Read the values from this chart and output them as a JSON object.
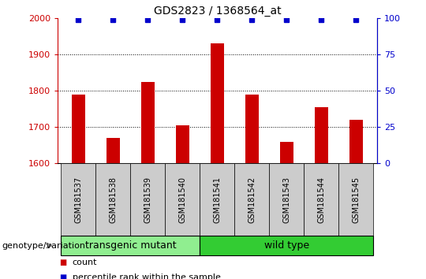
{
  "title": "GDS2823 / 1368564_at",
  "samples": [
    "GSM181537",
    "GSM181538",
    "GSM181539",
    "GSM181540",
    "GSM181541",
    "GSM181542",
    "GSM181543",
    "GSM181544",
    "GSM181545"
  ],
  "counts": [
    1790,
    1670,
    1825,
    1705,
    1930,
    1790,
    1658,
    1755,
    1720
  ],
  "percentile_ranks": [
    99,
    99,
    99,
    99,
    99,
    99,
    99,
    99,
    99
  ],
  "ylim_left": [
    1600,
    2000
  ],
  "yticks_left": [
    1600,
    1700,
    1800,
    1900,
    2000
  ],
  "ylim_right": [
    0,
    100
  ],
  "yticks_right": [
    0,
    25,
    50,
    75,
    100
  ],
  "bar_color": "#cc0000",
  "dot_color": "#0000cc",
  "left_tick_color": "#cc0000",
  "right_tick_color": "#0000cc",
  "groups": [
    {
      "label": "transgenic mutant",
      "start": 0,
      "end": 4,
      "color": "#90ee90"
    },
    {
      "label": "wild type",
      "start": 4,
      "end": 9,
      "color": "#33cc33"
    }
  ],
  "group_label": "genotype/variation",
  "legend_count_label": "count",
  "legend_percentile_label": "percentile rank within the sample",
  "grid_color": "#000000",
  "bg_color": "#ffffff",
  "tick_area_color": "#cccccc",
  "bar_width": 0.4
}
